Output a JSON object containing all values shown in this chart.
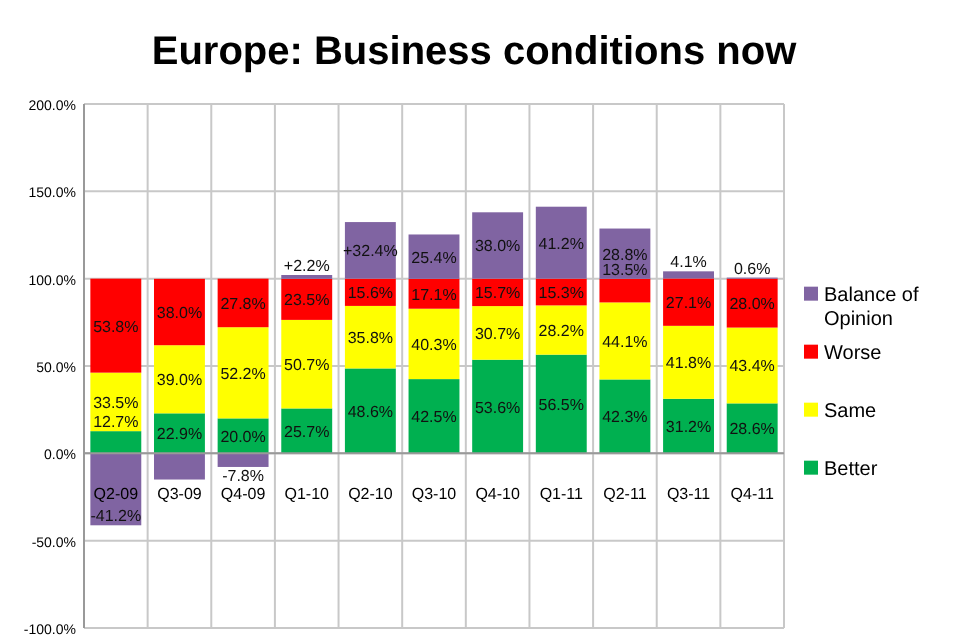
{
  "chart_data": {
    "type": "bar",
    "title": "Europe: Business conditions now",
    "stacked": true,
    "grid": true,
    "legend": "right",
    "categories": [
      "Q2-09",
      "Q3-09",
      "Q4-09",
      "Q1-10",
      "Q2-10",
      "Q3-10",
      "Q4-10",
      "Q1-11",
      "Q2-11",
      "Q3-11",
      "Q4-11"
    ],
    "ylim": [
      -100,
      200
    ],
    "yticks": [
      {
        "value": -100,
        "label": "-100.0%"
      },
      {
        "value": -50,
        "label": "-50.0%"
      },
      {
        "value": 0,
        "label": "0.0%"
      },
      {
        "value": 50,
        "label": "50.0%"
      },
      {
        "value": 100,
        "label": "100.0%"
      },
      {
        "value": 150,
        "label": "150.0%"
      },
      {
        "value": 200,
        "label": "200.0%"
      }
    ],
    "series": [
      {
        "name": "Better",
        "color": "#00b050",
        "values": [
          12.7,
          22.9,
          20.0,
          25.7,
          48.6,
          42.5,
          53.6,
          56.5,
          42.3,
          31.2,
          28.6
        ],
        "value_labels": [
          "12.7%",
          "22.9%",
          "20.0%",
          "25.7%",
          "48.6%",
          "42.5%",
          "53.6%",
          "56.5%",
          "42.3%",
          "31.2%",
          "28.6%"
        ]
      },
      {
        "name": "Same",
        "color": "#ffff00",
        "values": [
          33.5,
          39.0,
          52.2,
          50.7,
          35.8,
          40.3,
          30.7,
          28.2,
          44.1,
          41.8,
          43.4
        ],
        "value_labels": [
          "33.5%",
          "39.0%",
          "52.2%",
          "50.7%",
          "35.8%",
          "40.3%",
          "30.7%",
          "28.2%",
          "44.1%",
          "41.8%",
          "43.4%"
        ]
      },
      {
        "name": "Worse",
        "color": "#ff0000",
        "values": [
          53.8,
          38.0,
          27.8,
          23.5,
          15.6,
          17.1,
          15.7,
          15.3,
          13.5,
          27.1,
          28.0
        ],
        "value_labels": [
          "53.8%",
          "38.0%",
          "27.8%",
          "23.5%",
          "15.6%",
          "17.1%",
          "15.7%",
          "15.3%",
          "13.5%",
          "27.1%",
          "28.0%"
        ]
      },
      {
        "name": "Balance of Opinion",
        "color": "#8064a2",
        "values": [
          -41.2,
          -15,
          -7.8,
          2.2,
          32.4,
          25.4,
          38.0,
          41.2,
          28.8,
          4.1,
          0.6
        ],
        "value_labels": [
          "-41.2%",
          null,
          "-7.8%",
          "+2.2%",
          "+32.4%",
          "25.4%",
          "38.0%",
          "41.2%",
          "28.8%",
          "4.1%",
          "0.6%"
        ]
      }
    ]
  }
}
